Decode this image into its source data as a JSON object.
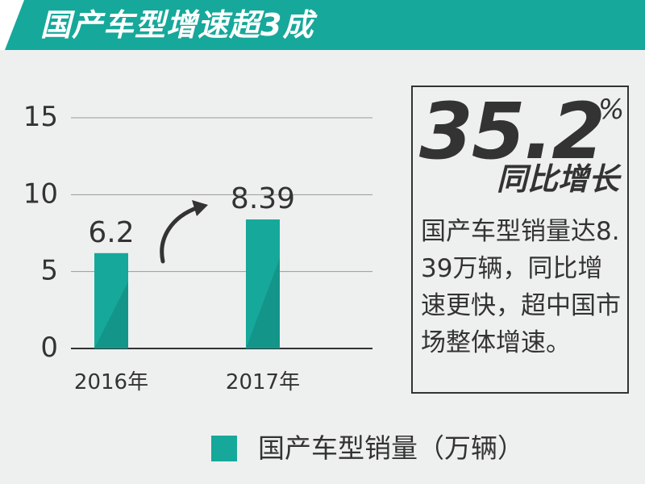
{
  "header": {
    "title": "国产车型增速超3成"
  },
  "chart_data": {
    "type": "bar",
    "categories": [
      "2016年",
      "2017年"
    ],
    "series": [
      {
        "name": "国产车型销量（万辆）",
        "values": [
          6.2,
          8.39
        ]
      }
    ],
    "data_labels": [
      "6.2",
      "8.39"
    ],
    "y_ticks": [
      0,
      5,
      10,
      15
    ],
    "ylim": [
      0,
      15
    ],
    "grid": true,
    "legend_position": "bottom"
  },
  "stat": {
    "value": "35.2",
    "unit": "%",
    "label": "同比增长",
    "description": "国产车型销量达8.39万辆，同比增速更快，超中国市场整体增速。"
  },
  "legend": {
    "label": "国产车型销量（万辆）"
  },
  "colors": {
    "accent": "#16a89a",
    "bar_shade": "#13877c",
    "text": "#333333",
    "background": "#eef0ef"
  },
  "icons": {
    "growth_arrow": "curved-arrow-icon"
  }
}
